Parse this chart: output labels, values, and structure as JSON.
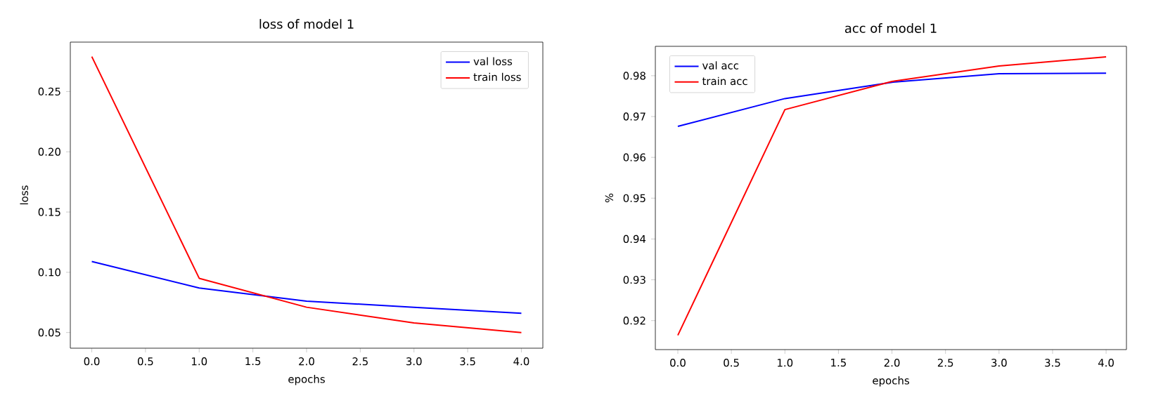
{
  "chart_data": [
    {
      "type": "line",
      "title": "loss of model 1",
      "xlabel": "epochs",
      "ylabel": "loss",
      "x": [
        0,
        1,
        2,
        3,
        4
      ],
      "series": [
        {
          "name": "val loss",
          "color": "#0000ff",
          "values": [
            0.109,
            0.087,
            0.076,
            0.071,
            0.066
          ]
        },
        {
          "name": "train loss",
          "color": "#ff0000",
          "values": [
            0.279,
            0.095,
            0.071,
            0.058,
            0.05
          ]
        }
      ],
      "xlim": [
        -0.2,
        4.2
      ],
      "ylim": [
        0.037,
        0.291
      ],
      "xticks": [
        {
          "value": 0,
          "label": "0.0"
        },
        {
          "value": 0.5,
          "label": "0.5"
        },
        {
          "value": 1,
          "label": "1.0"
        },
        {
          "value": 1.5,
          "label": "1.5"
        },
        {
          "value": 2,
          "label": "2.0"
        },
        {
          "value": 2.5,
          "label": "2.5"
        },
        {
          "value": 3,
          "label": "3.0"
        },
        {
          "value": 3.5,
          "label": "3.5"
        },
        {
          "value": 4,
          "label": "4.0"
        }
      ],
      "yticks": [
        {
          "value": 0.05,
          "label": "0.05"
        },
        {
          "value": 0.1,
          "label": "0.10"
        },
        {
          "value": 0.15,
          "label": "0.15"
        },
        {
          "value": 0.2,
          "label": "0.20"
        },
        {
          "value": 0.25,
          "label": "0.25"
        }
      ],
      "legend": "top right",
      "grid": false,
      "marker": "none",
      "line_style": "solid"
    },
    {
      "type": "line",
      "title": "acc of model 1",
      "xlabel": "epochs",
      "ylabel": "%",
      "x": [
        0,
        1,
        2,
        3,
        4
      ],
      "series": [
        {
          "name": "val acc",
          "color": "#0000ff",
          "values": [
            0.9676,
            0.9744,
            0.9784,
            0.9805,
            0.9806
          ]
        },
        {
          "name": "train acc",
          "color": "#ff0000",
          "values": [
            0.9164,
            0.9717,
            0.9786,
            0.9824,
            0.9846
          ]
        }
      ],
      "xlim": [
        -0.21,
        4.19
      ],
      "ylim": [
        0.9129,
        0.9872
      ],
      "xticks": [
        {
          "value": 0,
          "label": "0.0"
        },
        {
          "value": 0.5,
          "label": "0.5"
        },
        {
          "value": 1,
          "label": "1.0"
        },
        {
          "value": 1.5,
          "label": "1.5"
        },
        {
          "value": 2,
          "label": "2.0"
        },
        {
          "value": 2.5,
          "label": "2.5"
        },
        {
          "value": 3,
          "label": "3.0"
        },
        {
          "value": 3.5,
          "label": "3.5"
        },
        {
          "value": 4,
          "label": "4.0"
        }
      ],
      "yticks": [
        {
          "value": 0.92,
          "label": "0.92"
        },
        {
          "value": 0.93,
          "label": "0.93"
        },
        {
          "value": 0.94,
          "label": "0.94"
        },
        {
          "value": 0.95,
          "label": "0.95"
        },
        {
          "value": 0.96,
          "label": "0.96"
        },
        {
          "value": 0.97,
          "label": "0.97"
        },
        {
          "value": 0.98,
          "label": "0.98"
        }
      ],
      "legend": "top left",
      "grid": false,
      "marker": "none",
      "line_style": "solid"
    }
  ]
}
